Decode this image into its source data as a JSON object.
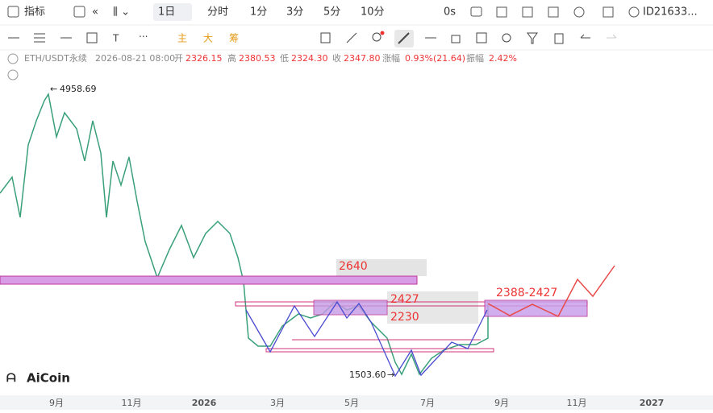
{
  "toolbar": {
    "indicator": "指标",
    "interval": "1日",
    "intervals": [
      "分时",
      "1分",
      "3分",
      "5分",
      "10分"
    ],
    "timer": "0s",
    "account": "ID21633..."
  },
  "drawing_tools": [
    "主",
    "大",
    "筹"
  ],
  "info": {
    "symbol": "ETH/USDT永续",
    "time": "2026-08-21 08:00",
    "open_label": "开",
    "open": "2326.15",
    "high_label": "高",
    "high": "2380.53",
    "low_label": "低",
    "low": "2324.30",
    "close_label": "收",
    "close": "2347.80",
    "change_label": "涨幅",
    "change": "0.93%(21.64)",
    "amplitude_label": "振幅",
    "amplitude": "2.42%"
  },
  "annotations": {
    "high": "4958.69",
    "low": "1503.60",
    "level_1": "2640",
    "level_2": "2427",
    "level_3": "2230",
    "target_zone": "2388-2427"
  },
  "x_axis": [
    "9月",
    "11月",
    "2026",
    "3月",
    "5月",
    "7月",
    "9月",
    "11月",
    "2027"
  ],
  "logo": "AiCoin"
}
